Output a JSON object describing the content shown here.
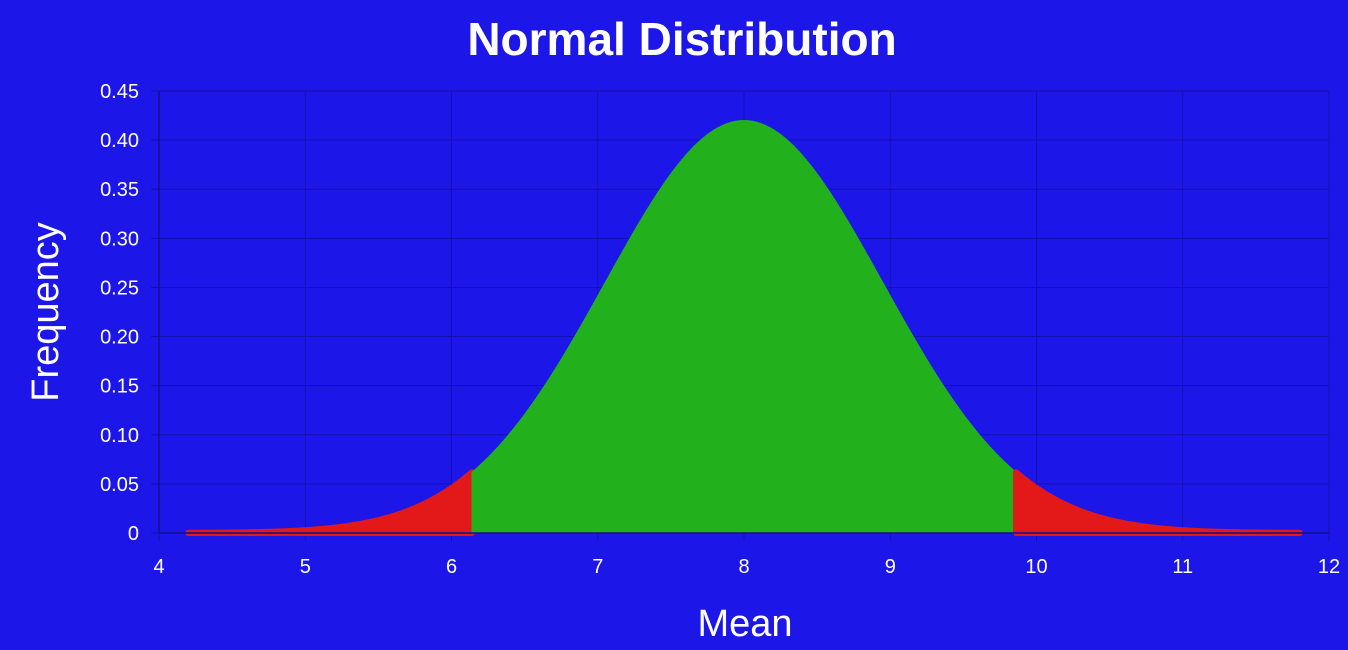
{
  "chart_data": {
    "type": "area",
    "title": "Normal Distribution",
    "xlabel": "Mean",
    "ylabel": "Frequency",
    "xlim": [
      4,
      12
    ],
    "ylim": [
      0,
      0.45
    ],
    "x_ticks": [
      "4",
      "5",
      "6",
      "7",
      "8",
      "9",
      "10",
      "11",
      "12"
    ],
    "y_ticks": [
      "0",
      "0.05",
      "0.10",
      "0.15",
      "0.20",
      "0.25",
      "0.30",
      "0.35",
      "0.40",
      "0.45"
    ],
    "grid": true,
    "distribution": {
      "mean": 8,
      "std_dev": 0.95,
      "x_start": 4.2,
      "x_end": 11.8
    },
    "regions": [
      {
        "from": 4.2,
        "to": 6.14,
        "color": "#e31919"
      },
      {
        "from": 6.14,
        "to": 9.86,
        "color": "#23b01d"
      },
      {
        "from": 9.86,
        "to": 11.8,
        "color": "#e31919"
      }
    ],
    "colors": {
      "background": "#1c17e8",
      "grid": "#1212b0",
      "text": "#ffffff"
    }
  }
}
